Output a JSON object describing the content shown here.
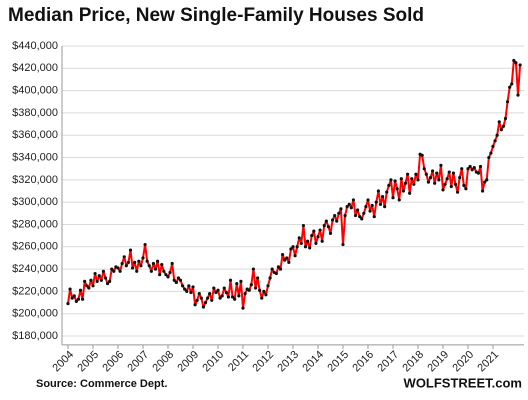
{
  "chart_data": {
    "type": "line",
    "title": "Median Price, New Single-Family Houses Sold",
    "source": "Source: Commerce Dept.",
    "watermark": "WOLFSTREET.com",
    "categories": [
      "2004",
      null,
      null,
      null,
      null,
      null,
      null,
      null,
      null,
      null,
      null,
      null,
      "2005",
      null,
      null,
      null,
      null,
      null,
      null,
      null,
      null,
      null,
      null,
      null,
      "2006",
      null,
      null,
      null,
      null,
      null,
      null,
      null,
      null,
      null,
      null,
      null,
      "2007",
      null,
      null,
      null,
      null,
      null,
      null,
      null,
      null,
      null,
      null,
      null,
      "2008",
      null,
      null,
      null,
      null,
      null,
      null,
      null,
      null,
      null,
      null,
      null,
      "2009",
      null,
      null,
      null,
      null,
      null,
      null,
      null,
      null,
      null,
      null,
      null,
      "2010",
      null,
      null,
      null,
      null,
      null,
      null,
      null,
      null,
      null,
      null,
      null,
      "2011",
      null,
      null,
      null,
      null,
      null,
      null,
      null,
      null,
      null,
      null,
      null,
      "2012",
      null,
      null,
      null,
      null,
      null,
      null,
      null,
      null,
      null,
      null,
      null,
      "2013",
      null,
      null,
      null,
      null,
      null,
      null,
      null,
      null,
      null,
      null,
      null,
      "2014",
      null,
      null,
      null,
      null,
      null,
      null,
      null,
      null,
      null,
      null,
      null,
      "2015",
      null,
      null,
      null,
      null,
      null,
      null,
      null,
      null,
      null,
      null,
      null,
      "2016",
      null,
      null,
      null,
      null,
      null,
      null,
      null,
      null,
      null,
      null,
      null,
      "2017",
      null,
      null,
      null,
      null,
      null,
      null,
      null,
      null,
      null,
      null,
      null,
      "2018",
      null,
      null,
      null,
      null,
      null,
      null,
      null,
      null,
      null,
      null,
      null,
      "2019",
      null,
      null,
      null,
      null,
      null,
      null,
      null,
      null,
      null,
      null,
      null,
      "2020",
      null,
      null,
      null,
      null,
      null,
      null,
      null,
      null,
      null,
      null,
      null,
      "2021",
      null,
      null,
      null,
      null,
      null,
      null,
      null,
      null,
      null,
      null,
      null,
      null,
      null
    ],
    "series": [
      {
        "color": "#ff0000",
        "marker_color": "#111111",
        "values": [
          209000,
          222000,
          214000,
          216000,
          211000,
          213000,
          221000,
          213000,
          229000,
          225000,
          223000,
          230000,
          225000,
          236000,
          229000,
          234000,
          230000,
          238000,
          232000,
          227000,
          229000,
          240000,
          238000,
          242000,
          241000,
          238000,
          245000,
          251000,
          243000,
          246000,
          257000,
          241000,
          246000,
          238000,
          247000,
          243000,
          250000,
          262000,
          247000,
          243000,
          238000,
          245000,
          240000,
          247000,
          235000,
          244000,
          238000,
          235000,
          233000,
          237000,
          245000,
          230000,
          228000,
          232000,
          230000,
          225000,
          222000,
          220000,
          225000,
          219000,
          224000,
          208000,
          212000,
          218000,
          214000,
          206000,
          210000,
          214000,
          218000,
          212000,
          223000,
          219000,
          221000,
          214000,
          216000,
          223000,
          219000,
          215000,
          230000,
          215000,
          213000,
          227000,
          216000,
          229000,
          205000,
          218000,
          222000,
          221000,
          226000,
          240000,
          223000,
          232000,
          221000,
          214000,
          220000,
          217000,
          225000,
          232000,
          240000,
          237000,
          236000,
          242000,
          240000,
          253000,
          248000,
          250000,
          246000,
          258000,
          260000,
          252000,
          260000,
          268000,
          263000,
          279000,
          260000,
          265000,
          259000,
          270000,
          274000,
          263000,
          269000,
          275000,
          265000,
          279000,
          283000,
          278000,
          272000,
          284000,
          288000,
          283000,
          290000,
          294000,
          262000,
          288000,
          296000,
          298000,
          295000,
          302000,
          288000,
          293000,
          287000,
          285000,
          290000,
          296000,
          302000,
          292000,
          297000,
          287000,
          300000,
          310000,
          298000,
          305000,
          296000,
          309000,
          315000,
          320000,
          304000,
          319000,
          312000,
          302000,
          321000,
          310000,
          317000,
          325000,
          308000,
          321000,
          316000,
          325000,
          320000,
          343000,
          342000,
          330000,
          325000,
          318000,
          322000,
          328000,
          317000,
          326000,
          320000,
          333000,
          311000,
          316000,
          321000,
          327000,
          314000,
          326000,
          316000,
          309000,
          322000,
          330000,
          315000,
          312000,
          330000,
          332000,
          329000,
          331000,
          327000,
          326000,
          332000,
          310000,
          318000,
          320000,
          340000,
          344000,
          350000,
          355000,
          360000,
          372000,
          365000,
          368000,
          375000,
          390000,
          403000,
          406000,
          427000,
          425000,
          396000,
          423000
        ]
      }
    ],
    "ylim": [
      172000,
      440000
    ],
    "yticks": [
      {
        "value": 180000,
        "label": "$180,000"
      },
      {
        "value": 200000,
        "label": "$200,000"
      },
      {
        "value": 220000,
        "label": "$220,000"
      },
      {
        "value": 240000,
        "label": "$240,000"
      },
      {
        "value": 260000,
        "label": "$260,000"
      },
      {
        "value": 280000,
        "label": "$280,000"
      },
      {
        "value": 300000,
        "label": "$300,000"
      },
      {
        "value": 320000,
        "label": "$320,000"
      },
      {
        "value": 340000,
        "label": "$340,000"
      },
      {
        "value": 360000,
        "label": "$360,000"
      },
      {
        "value": 380000,
        "label": "$380,000"
      },
      {
        "value": 400000,
        "label": "$400,000"
      },
      {
        "value": 420000,
        "label": "$420,000"
      },
      {
        "value": 440000,
        "label": "$440,000"
      }
    ],
    "grid": true
  }
}
